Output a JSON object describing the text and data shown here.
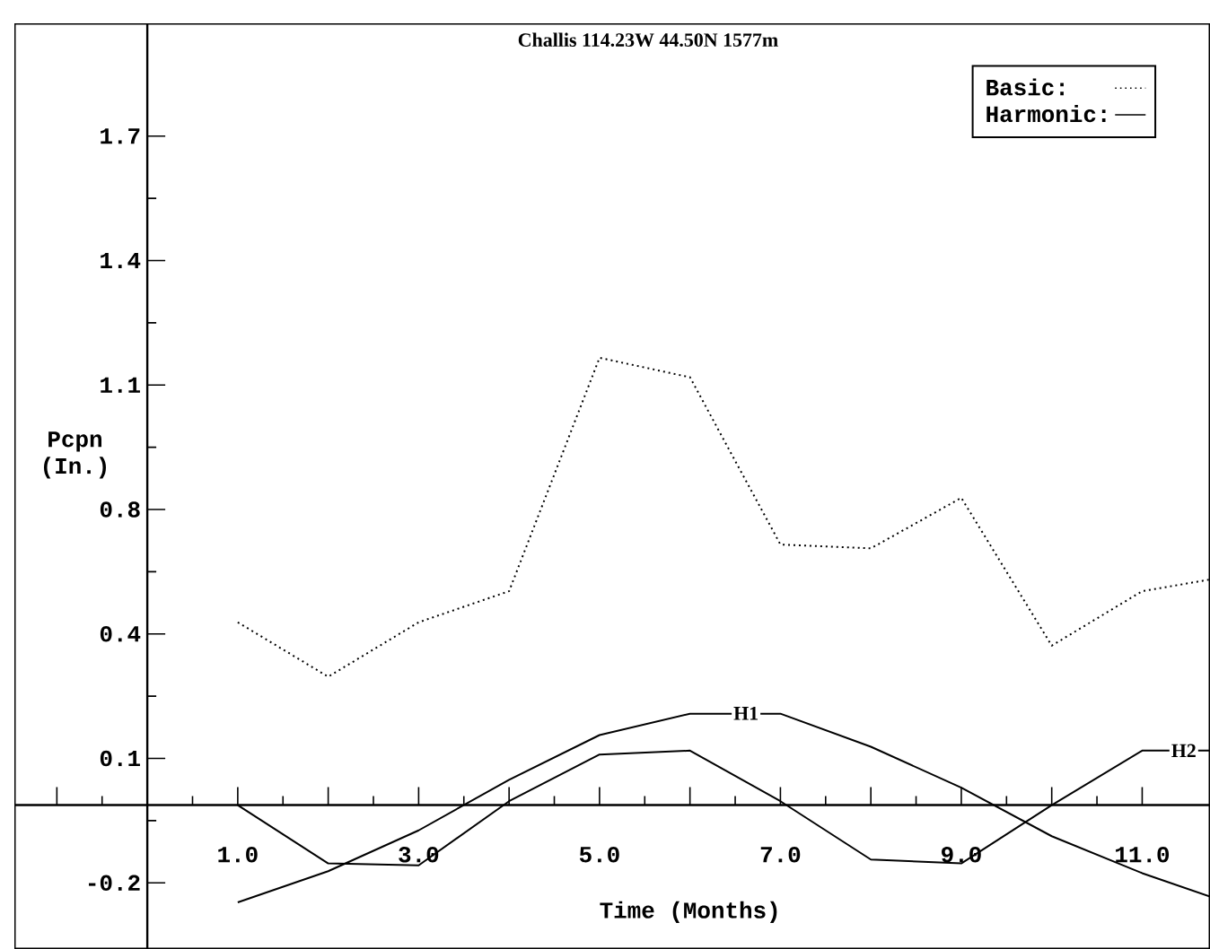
{
  "chart_data": {
    "type": "line",
    "title": "Challis 114.23W 44.50N 1577m",
    "xlabel": "Time (Months)",
    "ylabel": "Pcpn (In.)",
    "xlim": [
      -1.47,
      11.75
    ],
    "ylim": [
      -0.37,
      2.01
    ],
    "xticks": [
      {
        "value": -1,
        "label": null
      },
      {
        "value": 0,
        "label": null
      },
      {
        "value": 1,
        "label": "1.0"
      },
      {
        "value": 2,
        "label": null
      },
      {
        "value": 3,
        "label": "3.0"
      },
      {
        "value": 4,
        "label": null
      },
      {
        "value": 5,
        "label": "5.0"
      },
      {
        "value": 6,
        "label": null
      },
      {
        "value": 7,
        "label": "7.0"
      },
      {
        "value": 8,
        "label": null
      },
      {
        "value": 9,
        "label": "9.0"
      },
      {
        "value": 10,
        "label": null
      },
      {
        "value": 11,
        "label": "11.0"
      }
    ],
    "yticks": [
      -0.2,
      {
        "value": 0.12,
        "label": "0.1"
      },
      {
        "value": 0.44,
        "label": "0.4"
      },
      {
        "value": 0.76,
        "label": "0.8"
      },
      {
        "value": 1.08,
        "label": "1.1"
      },
      {
        "value": 1.4,
        "label": "1.4"
      },
      {
        "value": 1.72,
        "label": "1.7"
      }
    ],
    "grid": false,
    "legend": "top right",
    "marker": "none",
    "series": [
      {
        "name": "Basic:",
        "color": "#000000",
        "line_style": "dotted",
        "x": [
          1,
          2,
          3,
          4,
          5,
          6,
          7,
          8,
          9,
          10,
          11,
          11.75
        ],
        "values": [
          0.47,
          0.33,
          0.47,
          0.55,
          1.15,
          1.1,
          0.67,
          0.66,
          0.79,
          0.41,
          0.55,
          0.58
        ]
      },
      {
        "name": "Harmonic:",
        "color": "#000000",
        "line_style": "solid",
        "x": [
          1,
          2,
          3,
          4,
          5,
          6,
          7,
          8,
          9,
          10,
          11,
          11.75
        ],
        "values": [
          -0.25,
          -0.17,
          -0.065,
          0.065,
          0.18,
          0.235,
          0.235,
          0.15,
          0.045,
          -0.08,
          -0.175,
          -0.235
        ]
      },
      {
        "color": "#000000",
        "line_style": "solid",
        "x": [
          1,
          2,
          3,
          4,
          5,
          6,
          7,
          8,
          9,
          10,
          11,
          11.75
        ],
        "values": [
          0,
          -0.15,
          -0.155,
          0.01,
          0.13,
          0.14,
          0.01,
          -0.14,
          -0.15,
          0,
          0.14,
          0.14
        ]
      }
    ],
    "annotations": [
      {
        "text": "H1",
        "x": 6.62,
        "y": 0.236
      },
      {
        "text": "H2",
        "x": 11.46,
        "y": 0.14
      }
    ]
  }
}
